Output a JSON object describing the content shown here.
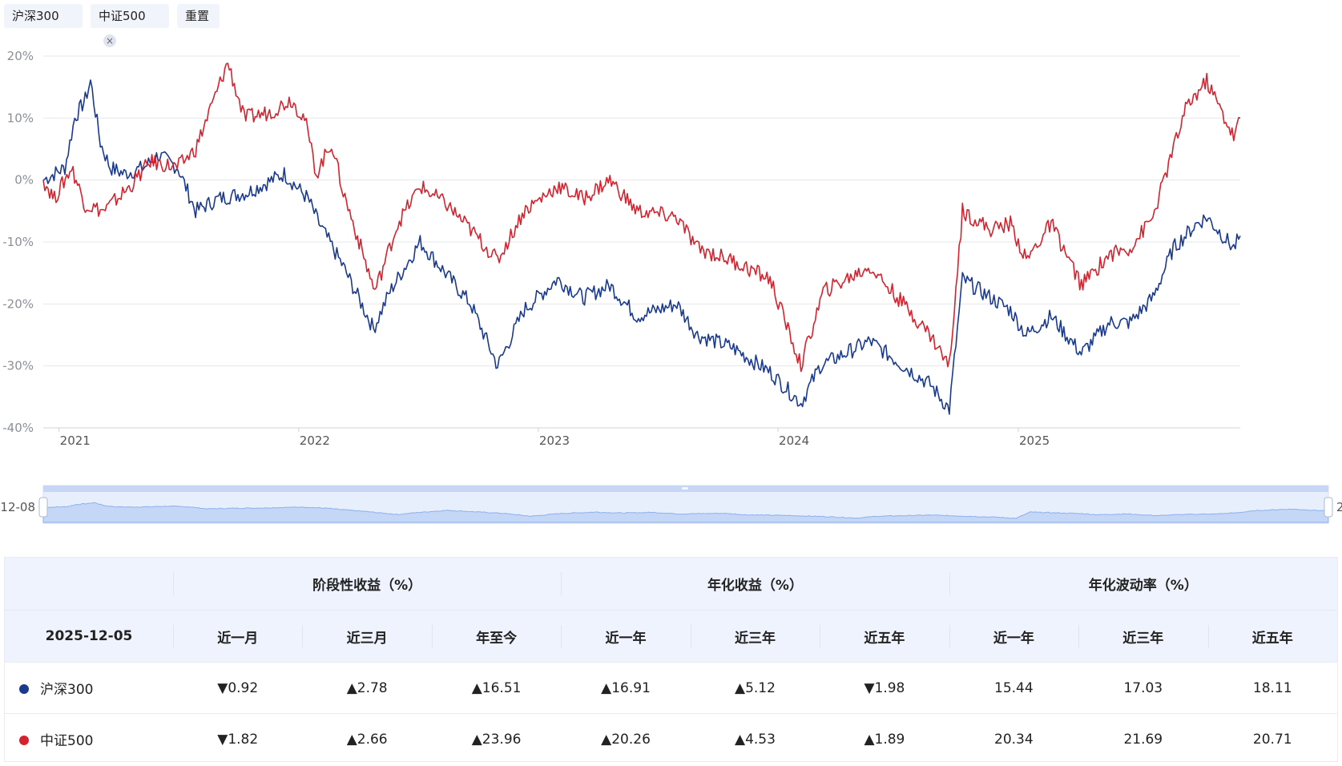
{
  "filters": {
    "tag1_label": "沪深300",
    "tag2_label": "中证500",
    "reset_label": "重置"
  },
  "colors": {
    "s1": "#1a3a8f",
    "s2": "#d4232f",
    "up": "#e4474c",
    "down": "#13a36f"
  },
  "slider": {
    "start_label": "12-08",
    "end_label": "2"
  },
  "chart_data": {
    "type": "line",
    "title": "",
    "x_range": [
      "2020-12-08",
      "2025-12-05"
    ],
    "x_ticks": [
      "2021",
      "2022",
      "2023",
      "2024",
      "2025"
    ],
    "y_ticks": [
      "20%",
      "10%",
      "0%",
      "-10%",
      "-20%",
      "-30%",
      "-40%"
    ],
    "ylim": [
      -40,
      20
    ],
    "series": [
      {
        "name": "沪深300",
        "points": [
          [
            "2020-12-08",
            0
          ],
          [
            "2021-01-10",
            2
          ],
          [
            "2021-01-25",
            10
          ],
          [
            "2021-02-10",
            13
          ],
          [
            "2021-02-18",
            16
          ],
          [
            "2021-03-05",
            6
          ],
          [
            "2021-03-20",
            2
          ],
          [
            "2021-04-10",
            1
          ],
          [
            "2021-05-10",
            2
          ],
          [
            "2021-06-01",
            4
          ],
          [
            "2021-07-01",
            2
          ],
          [
            "2021-07-28",
            -5
          ],
          [
            "2021-09-01",
            -3
          ],
          [
            "2021-10-15",
            -2
          ],
          [
            "2021-12-10",
            1
          ],
          [
            "2022-01-15",
            -3
          ],
          [
            "2022-02-01",
            -7
          ],
          [
            "2022-03-10",
            -14
          ],
          [
            "2022-04-25",
            -24
          ],
          [
            "2022-05-20",
            -18
          ],
          [
            "2022-07-05",
            -10
          ],
          [
            "2022-08-20",
            -16
          ],
          [
            "2022-09-20",
            -20
          ],
          [
            "2022-10-31",
            -30
          ],
          [
            "2022-12-10",
            -21
          ],
          [
            "2023-01-30",
            -16
          ],
          [
            "2023-03-10",
            -19
          ],
          [
            "2023-04-20",
            -17
          ],
          [
            "2023-05-31",
            -22
          ],
          [
            "2023-07-31",
            -20
          ],
          [
            "2023-08-31",
            -25
          ],
          [
            "2023-10-23",
            -27
          ],
          [
            "2023-12-20",
            -31
          ],
          [
            "2024-02-05",
            -36
          ],
          [
            "2024-03-05",
            -30
          ],
          [
            "2024-05-20",
            -26
          ],
          [
            "2024-07-10",
            -30
          ],
          [
            "2024-08-20",
            -33
          ],
          [
            "2024-09-18",
            -37
          ],
          [
            "2024-10-08",
            -16
          ],
          [
            "2024-11-20",
            -19
          ],
          [
            "2024-12-20",
            -21
          ],
          [
            "2025-01-13",
            -25
          ],
          [
            "2025-02-20",
            -22
          ],
          [
            "2025-04-07",
            -28
          ],
          [
            "2025-05-20",
            -23
          ],
          [
            "2025-06-20",
            -23
          ],
          [
            "2025-07-25",
            -19
          ],
          [
            "2025-08-25",
            -11
          ],
          [
            "2025-09-30",
            -7
          ],
          [
            "2025-10-15",
            -6
          ],
          [
            "2025-11-25",
            -11
          ],
          [
            "2025-12-05",
            -9
          ]
        ]
      },
      {
        "name": "中证500",
        "points": [
          [
            "2020-12-08",
            0
          ],
          [
            "2020-12-25",
            -3
          ],
          [
            "2021-01-20",
            2
          ],
          [
            "2021-02-10",
            -4
          ],
          [
            "2021-03-10",
            -5
          ],
          [
            "2021-04-20",
            -1
          ],
          [
            "2021-05-20",
            3
          ],
          [
            "2021-06-30",
            2
          ],
          [
            "2021-07-28",
            5
          ],
          [
            "2021-09-01",
            15
          ],
          [
            "2021-09-15",
            19
          ],
          [
            "2021-10-10",
            10
          ],
          [
            "2021-11-20",
            11
          ],
          [
            "2021-12-20",
            13
          ],
          [
            "2022-01-10",
            10
          ],
          [
            "2022-01-28",
            1
          ],
          [
            "2022-02-20",
            6
          ],
          [
            "2022-03-10",
            -2
          ],
          [
            "2022-04-27",
            -18
          ],
          [
            "2022-06-01",
            -7
          ],
          [
            "2022-07-05",
            -1
          ],
          [
            "2022-08-15",
            -4
          ],
          [
            "2022-09-20",
            -8
          ],
          [
            "2022-10-31",
            -13
          ],
          [
            "2022-12-10",
            -5
          ],
          [
            "2023-01-30",
            -1
          ],
          [
            "2023-03-10",
            -3
          ],
          [
            "2023-04-20",
            0
          ],
          [
            "2023-05-31",
            -5
          ],
          [
            "2023-07-31",
            -6
          ],
          [
            "2023-08-31",
            -11
          ],
          [
            "2023-10-23",
            -13
          ],
          [
            "2023-12-20",
            -16
          ],
          [
            "2024-02-05",
            -30
          ],
          [
            "2024-03-10",
            -18
          ],
          [
            "2024-05-20",
            -14
          ],
          [
            "2024-07-10",
            -20
          ],
          [
            "2024-08-20",
            -25
          ],
          [
            "2024-09-18",
            -30
          ],
          [
            "2024-10-08",
            -5
          ],
          [
            "2024-11-20",
            -8
          ],
          [
            "2024-12-20",
            -7
          ],
          [
            "2025-01-13",
            -13
          ],
          [
            "2025-02-20",
            -7
          ],
          [
            "2025-04-07",
            -17
          ],
          [
            "2025-05-20",
            -12
          ],
          [
            "2025-06-20",
            -11
          ],
          [
            "2025-07-25",
            -6
          ],
          [
            "2025-08-25",
            5
          ],
          [
            "2025-09-15",
            12
          ],
          [
            "2025-10-15",
            16
          ],
          [
            "2025-11-25",
            7
          ],
          [
            "2025-12-05",
            10
          ]
        ]
      }
    ]
  },
  "table": {
    "group_headers": [
      "阶段性收益（%）",
      "年化收益（%）",
      "年化波动率（%）"
    ],
    "date_label": "2025-12-05",
    "columns": [
      "近一月",
      "近三月",
      "年至今",
      "近一年",
      "近三年",
      "近五年",
      "近一年",
      "近三年",
      "近五年"
    ],
    "rows": [
      {
        "name": "沪深300",
        "cells": [
          {
            "dir": "down",
            "arrow": "▼",
            "value": "0.92"
          },
          {
            "dir": "up",
            "arrow": "▲",
            "value": "2.78"
          },
          {
            "dir": "up",
            "arrow": "▲",
            "value": "16.51"
          },
          {
            "dir": "up",
            "arrow": "▲",
            "value": "16.91"
          },
          {
            "dir": "up",
            "arrow": "▲",
            "value": "5.12"
          },
          {
            "dir": "down",
            "arrow": "▼",
            "value": "1.98"
          },
          {
            "dir": "none",
            "arrow": "",
            "value": "15.44"
          },
          {
            "dir": "none",
            "arrow": "",
            "value": "17.03"
          },
          {
            "dir": "none",
            "arrow": "",
            "value": "18.11"
          }
        ]
      },
      {
        "name": "中证500",
        "cells": [
          {
            "dir": "down",
            "arrow": "▼",
            "value": "1.82"
          },
          {
            "dir": "up",
            "arrow": "▲",
            "value": "2.66"
          },
          {
            "dir": "up",
            "arrow": "▲",
            "value": "23.96"
          },
          {
            "dir": "up",
            "arrow": "▲",
            "value": "20.26"
          },
          {
            "dir": "up",
            "arrow": "▲",
            "value": "4.53"
          },
          {
            "dir": "up",
            "arrow": "▲",
            "value": "1.89"
          },
          {
            "dir": "none",
            "arrow": "",
            "value": "20.34"
          },
          {
            "dir": "none",
            "arrow": "",
            "value": "21.69"
          },
          {
            "dir": "none",
            "arrow": "",
            "value": "20.71"
          }
        ]
      }
    ]
  }
}
